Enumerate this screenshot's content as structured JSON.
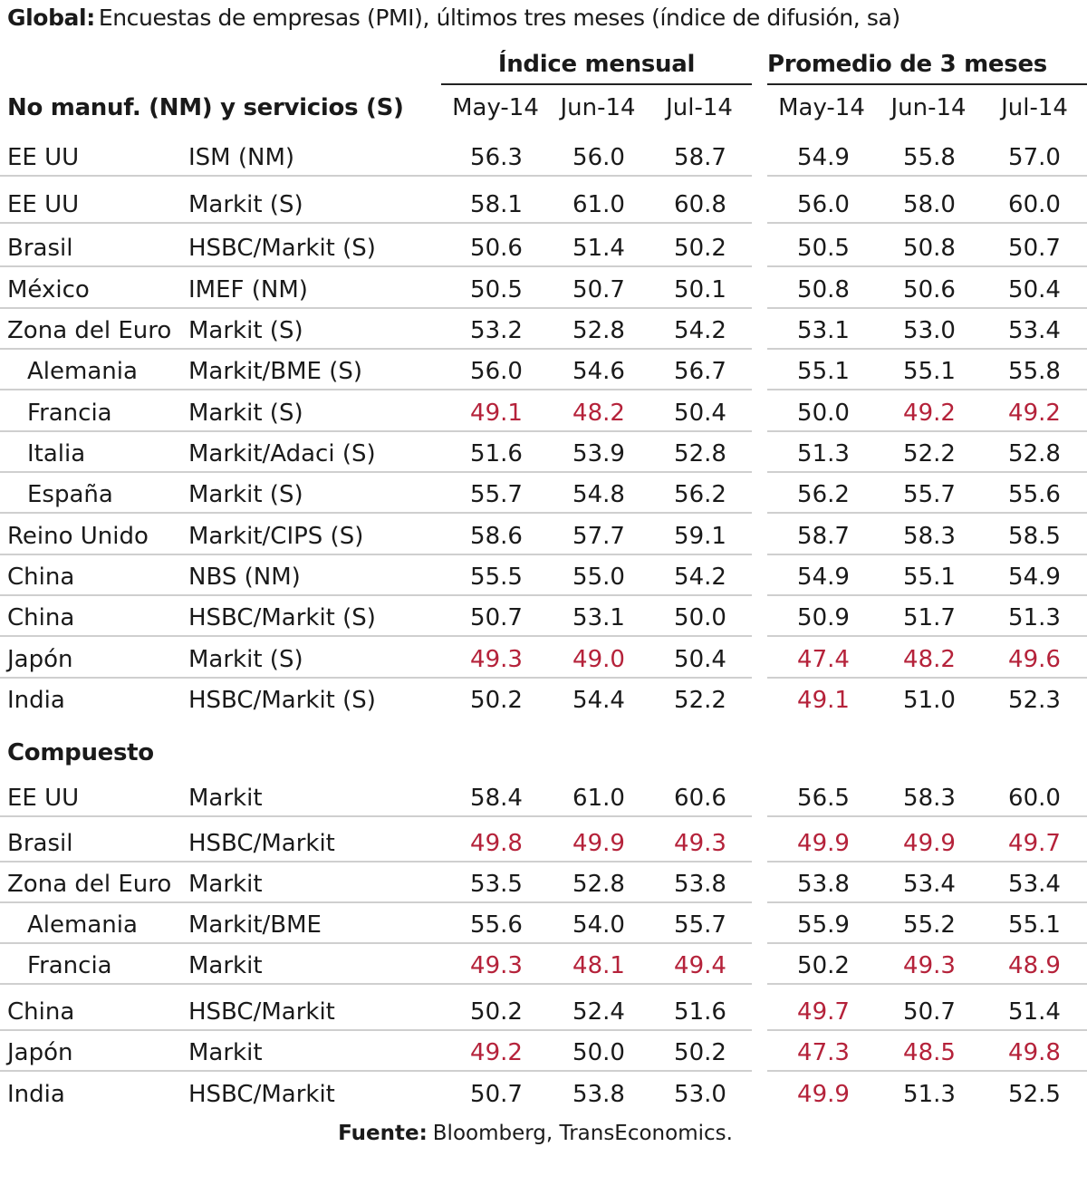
{
  "title": {
    "bold": "Global:",
    "text": "Encuestas de empresas (PMI), últimos tres meses (índice de difusión, sa)"
  },
  "groups": {
    "monthly": "Índice mensual",
    "avg3": "Promedio de 3 meses"
  },
  "months": [
    "May-14",
    "Jun-14",
    "Jul-14"
  ],
  "sections": {
    "services": "No manuf. (NM) y servicios (S)",
    "composite": "Compuesto"
  },
  "colors": {
    "negative": "#b5223a",
    "text": "#1a1a1a",
    "rule": "#cfcfcf"
  },
  "services_rows": [
    {
      "country": "EE UU",
      "source": "ISM (NM)",
      "values": [
        56.3,
        56.0,
        58.7,
        54.9,
        55.8,
        57.0
      ]
    },
    {
      "country": "EE UU",
      "source": "Markit (S)",
      "values": [
        58.1,
        61.0,
        60.8,
        56.0,
        58.0,
        60.0
      ]
    },
    {
      "country": "Brasil",
      "source": "HSBC/Markit (S)",
      "values": [
        50.6,
        51.4,
        50.2,
        50.5,
        50.8,
        50.7
      ]
    },
    {
      "country": "México",
      "source": "IMEF (NM)",
      "values": [
        50.5,
        50.7,
        50.1,
        50.8,
        50.6,
        50.4
      ]
    },
    {
      "country": "Zona del Euro",
      "source": "Markit (S)",
      "values": [
        53.2,
        52.8,
        54.2,
        53.1,
        53.0,
        53.4
      ]
    },
    {
      "country": "Alemania",
      "source": "Markit/BME (S)",
      "sub": true,
      "values": [
        56.0,
        54.6,
        56.7,
        55.1,
        55.1,
        55.8
      ]
    },
    {
      "country": "Francia",
      "source": "Markit (S)",
      "sub": true,
      "values": [
        49.1,
        48.2,
        50.4,
        50.0,
        49.2,
        49.2
      ]
    },
    {
      "country": "Italia",
      "source": "Markit/Adaci (S)",
      "sub": true,
      "values": [
        51.6,
        53.9,
        52.8,
        51.3,
        52.2,
        52.8
      ]
    },
    {
      "country": "España",
      "source": "Markit (S)",
      "sub": true,
      "values": [
        55.7,
        54.8,
        56.2,
        56.2,
        55.7,
        55.6
      ]
    },
    {
      "country": "Reino Unido",
      "source": "Markit/CIPS (S)",
      "values": [
        58.6,
        57.7,
        59.1,
        58.7,
        58.3,
        58.5
      ]
    },
    {
      "country": "China",
      "source": "NBS (NM)",
      "values": [
        55.5,
        55.0,
        54.2,
        54.9,
        55.1,
        54.9
      ]
    },
    {
      "country": "China",
      "source": "HSBC/Markit (S)",
      "values": [
        50.7,
        53.1,
        50.0,
        50.9,
        51.7,
        51.3
      ]
    },
    {
      "country": "Japón",
      "source": "Markit (S)",
      "values": [
        49.3,
        49.0,
        50.4,
        47.4,
        48.2,
        49.6
      ]
    },
    {
      "country": "India",
      "source": "HSBC/Markit (S)",
      "values": [
        50.2,
        54.4,
        52.2,
        49.1,
        51.0,
        52.3
      ]
    }
  ],
  "composite_rows": [
    {
      "country": "EE UU",
      "source": "Markit",
      "values": [
        58.4,
        61.0,
        60.6,
        56.5,
        58.3,
        60.0
      ]
    },
    {
      "country": "Brasil",
      "source": "HSBC/Markit",
      "values": [
        49.8,
        49.9,
        49.3,
        49.9,
        49.9,
        49.7
      ]
    },
    {
      "country": "Zona del Euro",
      "source": "Markit",
      "values": [
        53.5,
        52.8,
        53.8,
        53.8,
        53.4,
        53.4
      ]
    },
    {
      "country": "Alemania",
      "source": "Markit/BME",
      "sub": true,
      "values": [
        55.6,
        54.0,
        55.7,
        55.9,
        55.2,
        55.1
      ]
    },
    {
      "country": "Francia",
      "source": "Markit",
      "sub": true,
      "values": [
        49.3,
        48.1,
        49.4,
        50.2,
        49.3,
        48.9
      ]
    },
    {
      "country": "China",
      "source": "HSBC/Markit",
      "values": [
        50.2,
        52.4,
        51.6,
        49.7,
        50.7,
        51.4
      ]
    },
    {
      "country": "Japón",
      "source": "Markit",
      "values": [
        49.2,
        50.0,
        50.2,
        47.3,
        48.5,
        49.8
      ]
    },
    {
      "country": "India",
      "source": "HSBC/Markit",
      "values": [
        50.7,
        53.8,
        53.0,
        49.9,
        51.3,
        52.5
      ]
    }
  ],
  "source_note": {
    "label": "Fuente:",
    "text": "Bloomberg, TransEconomics."
  }
}
